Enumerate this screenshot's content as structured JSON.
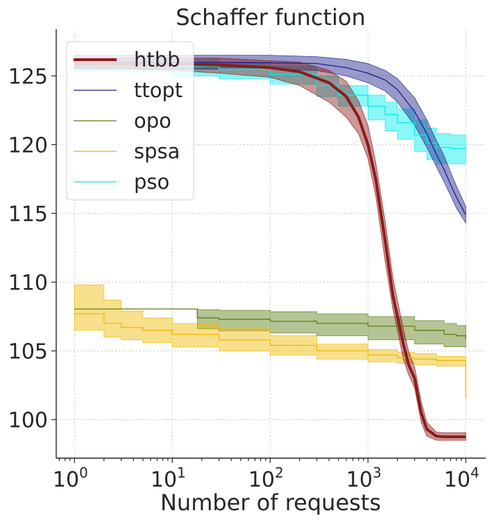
{
  "chart_data": {
    "type": "line",
    "title": "Schaffer function",
    "xlabel": "Number of requests",
    "ylabel": "",
    "x_scale": "log",
    "xlim": [
      0.65,
      16000
    ],
    "ylim": [
      97.2,
      128.4
    ],
    "x_ticks": [
      {
        "value": 1,
        "base": "10",
        "exp": "0"
      },
      {
        "value": 10,
        "base": "10",
        "exp": "1"
      },
      {
        "value": 100,
        "base": "10",
        "exp": "2"
      },
      {
        "value": 1000,
        "base": "10",
        "exp": "3"
      },
      {
        "value": 10000,
        "base": "10",
        "exp": "4"
      }
    ],
    "y_ticks": [
      {
        "value": 100,
        "label": "100"
      },
      {
        "value": 105,
        "label": "105"
      },
      {
        "value": 110,
        "label": "110"
      },
      {
        "value": 115,
        "label": "115"
      },
      {
        "value": 120,
        "label": "120"
      },
      {
        "value": 125,
        "label": "125"
      }
    ],
    "grid": true,
    "legend_position": "top-left",
    "series": [
      {
        "name": "htbb",
        "color": "#8b1a1a",
        "line_width": 4,
        "band_opacity": 0.45,
        "step": false,
        "x": [
          1,
          10,
          30,
          100,
          200,
          400,
          600,
          800,
          1000,
          1200,
          1500,
          1800,
          2000,
          2300,
          2600,
          3000,
          3500,
          4000,
          5000,
          6000,
          7000,
          10000
        ],
        "y": [
          125.9,
          125.85,
          125.8,
          125.6,
          125.3,
          124.5,
          123.5,
          122.0,
          120.0,
          117.5,
          113.0,
          109.0,
          107.5,
          105.5,
          104.0,
          103.0,
          100.5,
          99.3,
          98.8,
          98.75,
          98.75,
          98.75
        ],
        "lower": [
          125.6,
          125.4,
          125.2,
          124.9,
          124.3,
          123.1,
          122.0,
          120.8,
          119.0,
          116.3,
          111.5,
          108.0,
          106.5,
          104.4,
          103.3,
          102.3,
          99.8,
          98.8,
          98.5,
          98.5,
          98.5,
          98.5
        ],
        "upper": [
          126.3,
          126.3,
          126.3,
          126.1,
          126.0,
          125.4,
          124.6,
          123.2,
          121.4,
          118.7,
          114.4,
          110.3,
          108.7,
          106.6,
          105.0,
          103.8,
          101.3,
          99.8,
          99.1,
          99.05,
          99.05,
          99.05
        ]
      },
      {
        "name": "ttopt",
        "color": "#1c1c8c",
        "line_width": 1.3,
        "band_opacity": 0.45,
        "step": false,
        "x": [
          1,
          10,
          100,
          300,
          600,
          1000,
          1500,
          2000,
          3000,
          4000,
          5000,
          6000,
          7000,
          8000,
          10000
        ],
        "y": [
          126.0,
          126.0,
          125.95,
          125.9,
          125.6,
          125.2,
          124.7,
          124.0,
          122.4,
          120.8,
          119.3,
          118.2,
          117.1,
          116.2,
          114.9
        ],
        "lower": [
          125.5,
          125.5,
          125.5,
          125.4,
          125.0,
          124.5,
          123.9,
          123.1,
          121.4,
          119.8,
          118.4,
          117.3,
          116.3,
          115.4,
          114.3
        ],
        "upper": [
          126.5,
          126.5,
          126.5,
          126.4,
          126.2,
          125.9,
          125.4,
          124.8,
          123.4,
          121.8,
          120.3,
          119.2,
          118.0,
          117.0,
          115.5
        ]
      },
      {
        "name": "opo",
        "color": "#5a7d12",
        "line_width": 1.3,
        "band_opacity": 0.45,
        "step": true,
        "x": [
          1,
          17,
          18,
          30,
          100,
          300,
          1000,
          3000,
          6000,
          8000,
          10000
        ],
        "y": [
          108.05,
          108.05,
          107.4,
          107.3,
          107.15,
          107.0,
          106.8,
          106.5,
          106.2,
          106.1,
          105.9
        ],
        "lower": [
          108.05,
          108.05,
          106.6,
          106.45,
          106.3,
          106.1,
          105.8,
          105.5,
          105.3,
          105.3,
          105.2
        ],
        "upper": [
          108.05,
          108.05,
          108.0,
          107.95,
          107.85,
          107.7,
          107.5,
          107.2,
          107.0,
          106.85,
          106.7
        ]
      },
      {
        "name": "spsa",
        "color": "#f0b800",
        "line_width": 1.3,
        "band_opacity": 0.45,
        "step": true,
        "x": [
          1,
          2,
          3,
          5,
          10,
          30,
          100,
          300,
          1000,
          2000,
          3000,
          5000,
          9500,
          10000
        ],
        "y": [
          107.7,
          107.0,
          106.7,
          106.5,
          106.2,
          105.8,
          105.4,
          105.0,
          104.7,
          104.5,
          104.4,
          104.3,
          104.3,
          101.5
        ],
        "lower": [
          106.5,
          106.0,
          105.8,
          105.6,
          105.3,
          105.0,
          104.7,
          104.4,
          104.2,
          104.1,
          104.0,
          103.9,
          103.9,
          101.5
        ],
        "upper": [
          109.8,
          108.7,
          107.9,
          107.4,
          107.0,
          106.6,
          106.1,
          105.5,
          105.1,
          104.9,
          104.8,
          104.6,
          104.6,
          104.4
        ]
      },
      {
        "name": "pso",
        "color": "#00eeee",
        "line_width": 1.3,
        "band_opacity": 0.45,
        "step": true,
        "x": [
          1,
          10,
          30,
          100,
          300,
          500,
          1000,
          1500,
          2000,
          3000,
          4000,
          5000,
          7000,
          10000
        ],
        "y": [
          125.9,
          125.7,
          125.5,
          125.1,
          124.3,
          123.6,
          122.8,
          122.2,
          121.6,
          120.7,
          120.1,
          119.8,
          119.7,
          119.7
        ],
        "lower": [
          125.3,
          125.0,
          124.8,
          124.4,
          123.5,
          122.8,
          121.8,
          121.0,
          120.4,
          119.5,
          118.9,
          118.6,
          118.6,
          118.6
        ],
        "upper": [
          126.3,
          126.2,
          126.0,
          125.7,
          125.0,
          124.3,
          123.6,
          123.1,
          122.6,
          121.8,
          121.2,
          120.8,
          120.7,
          120.7
        ]
      }
    ]
  }
}
